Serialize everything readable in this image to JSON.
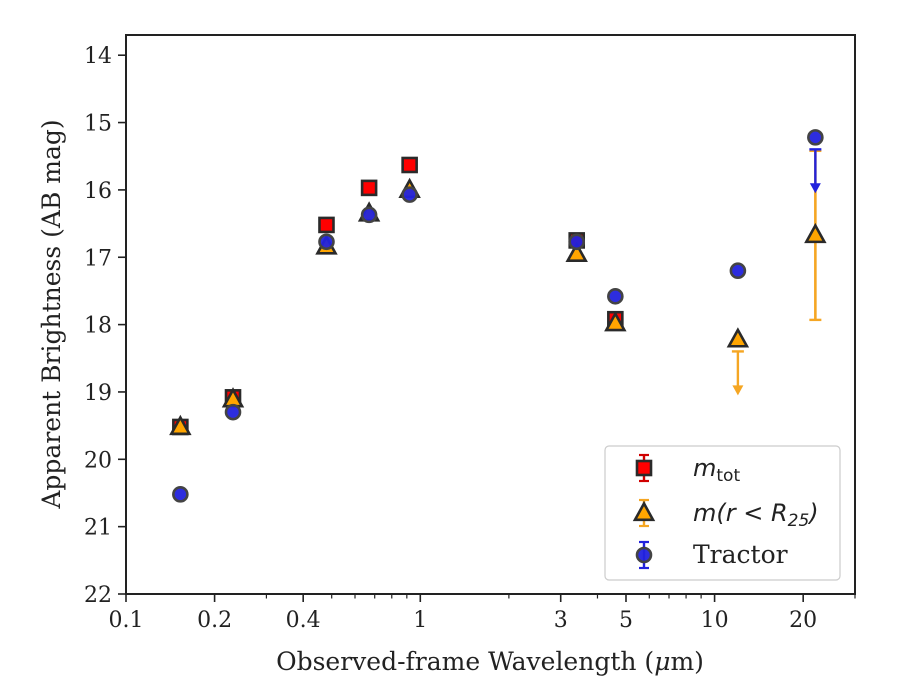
{
  "chart_data": {
    "type": "scatter",
    "xscale": "log",
    "yinverted": true,
    "xlim": [
      0.1,
      30
    ],
    "ylim": [
      22,
      13.7
    ],
    "xlabel_main": "Observed-frame Wavelength (",
    "xlabel_mu": "μ",
    "xlabel_unit": "m)",
    "ylabel": "Apparent Brightness (AB mag)",
    "xticks": [
      {
        "value": 0.1,
        "label": "0.1"
      },
      {
        "value": 0.2,
        "label": "0.2"
      },
      {
        "value": 0.4,
        "label": "0.4"
      },
      {
        "value": 1,
        "label": "1"
      },
      {
        "value": 3,
        "label": "3"
      },
      {
        "value": 5,
        "label": "5"
      },
      {
        "value": 10,
        "label": "10"
      },
      {
        "value": 20,
        "label": "20"
      }
    ],
    "yticks": [
      {
        "value": 14,
        "label": "14"
      },
      {
        "value": 15,
        "label": "15"
      },
      {
        "value": 16,
        "label": "16"
      },
      {
        "value": 17,
        "label": "17"
      },
      {
        "value": 18,
        "label": "18"
      },
      {
        "value": 19,
        "label": "19"
      },
      {
        "value": 20,
        "label": "20"
      },
      {
        "value": 21,
        "label": "21"
      },
      {
        "value": 22,
        "label": "22"
      }
    ],
    "legend_position": "lower right",
    "series": [
      {
        "name": "m_tot",
        "legend_main": "m",
        "legend_sub": "tot",
        "marker": "square",
        "color": "#ff0000",
        "errcolor": "#d00000",
        "points": [
          {
            "x": 0.153,
            "y": 19.52
          },
          {
            "x": 0.231,
            "y": 19.08
          },
          {
            "x": 0.48,
            "y": 16.52
          },
          {
            "x": 0.67,
            "y": 15.97
          },
          {
            "x": 0.92,
            "y": 15.63
          },
          {
            "x": 3.4,
            "y": 16.75
          },
          {
            "x": 4.6,
            "y": 17.92
          }
        ]
      },
      {
        "name": "m(r < R25)",
        "legend_main": "m(r < R",
        "legend_sub": "25",
        "legend_tail": ")",
        "marker": "triangle",
        "color": "#ffa500",
        "errcolor": "#f5a623",
        "points": [
          {
            "x": 0.153,
            "y": 19.52
          },
          {
            "x": 0.231,
            "y": 19.11
          },
          {
            "x": 0.48,
            "y": 16.84
          },
          {
            "x": 0.67,
            "y": 16.35
          },
          {
            "x": 0.92,
            "y": 16.0
          },
          {
            "x": 3.4,
            "y": 16.95
          },
          {
            "x": 4.6,
            "y": 17.98
          },
          {
            "x": 12.0,
            "y": 18.22,
            "upper_limit_to": 19.05
          },
          {
            "x": 22.0,
            "y": 16.67,
            "err_low": 15.42,
            "err_high": 17.93
          }
        ]
      },
      {
        "name": "Tractor",
        "legend_main": "Tractor",
        "marker": "circle",
        "color": "#2222dd",
        "errcolor": "#2222dd",
        "points": [
          {
            "x": 0.153,
            "y": 20.52
          },
          {
            "x": 0.231,
            "y": 19.3
          },
          {
            "x": 0.48,
            "y": 16.77
          },
          {
            "x": 0.67,
            "y": 16.37
          },
          {
            "x": 0.92,
            "y": 16.07
          },
          {
            "x": 3.4,
            "y": 16.77
          },
          {
            "x": 4.6,
            "y": 17.58
          },
          {
            "x": 12.0,
            "y": 17.2
          },
          {
            "x": 22.0,
            "y": 15.22,
            "upper_limit_to": 16.05
          }
        ]
      }
    ]
  }
}
